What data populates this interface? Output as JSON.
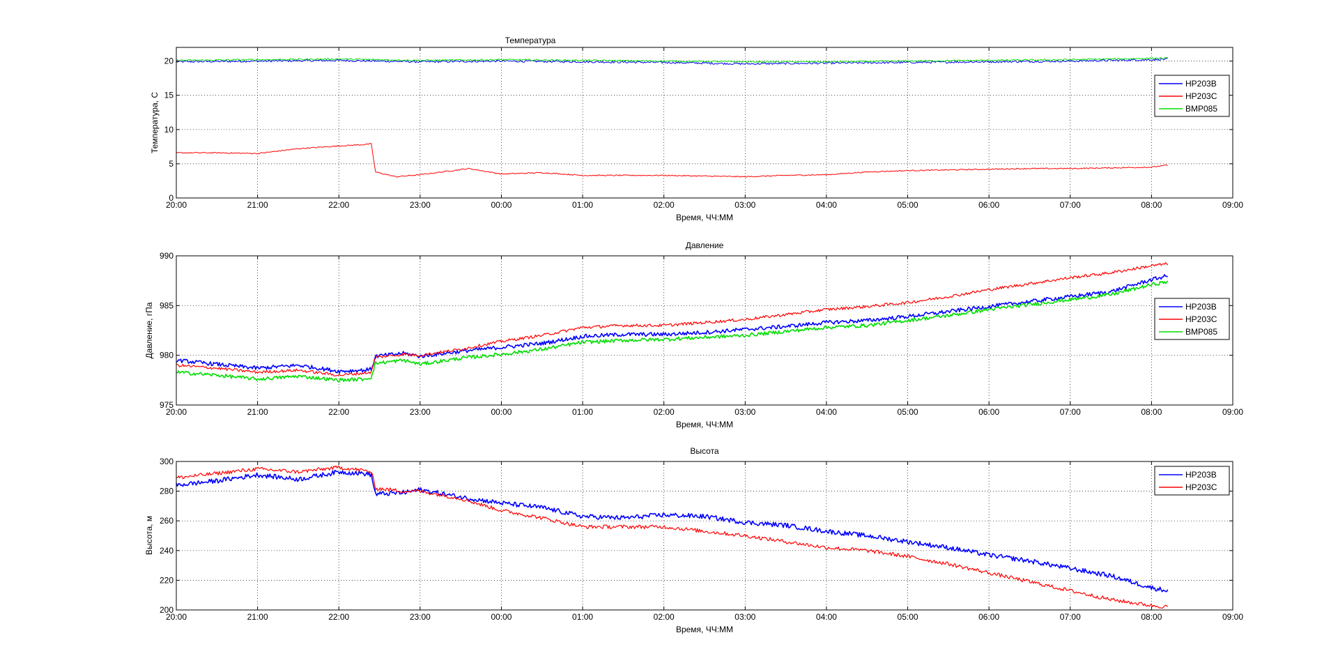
{
  "chart_data": [
    {
      "type": "line",
      "title": "Температура",
      "xlabel": "Время, ЧЧ:ММ",
      "ylabel": "Температура, C",
      "xlim": [
        20,
        33
      ],
      "ylim": [
        0,
        22
      ],
      "x_ticks": [
        20,
        21,
        22,
        23,
        24,
        25,
        26,
        27,
        28,
        29,
        30,
        31,
        32,
        33
      ],
      "x_tick_labels": [
        "20:00",
        "21:00",
        "22:00",
        "23:00",
        "00:00",
        "01:00",
        "02:00",
        "03:00",
        "04:00",
        "05:00",
        "06:00",
        "07:00",
        "08:00",
        "09:00"
      ],
      "y_ticks": [
        0,
        5,
        10,
        15,
        20
      ],
      "y_tick_labels": [
        "0",
        "5",
        "10",
        "15",
        "20"
      ],
      "grid": true,
      "legend_position": "right",
      "series": [
        {
          "name": "HP203B",
          "color": "#0000ff",
          "noise": 0.15,
          "width": 1,
          "x": [
            20,
            21,
            22,
            23,
            24,
            25,
            26,
            27,
            28,
            29,
            30,
            31,
            32,
            32.2
          ],
          "y": [
            19.9,
            20.0,
            20.1,
            19.9,
            20.0,
            19.9,
            19.8,
            19.6,
            19.7,
            19.8,
            19.9,
            20.0,
            20.2,
            20.3
          ]
        },
        {
          "name": "HP203C",
          "color": "#ff0000",
          "noise": 0.08,
          "width": 1,
          "x": [
            20,
            20.5,
            21,
            21.5,
            22,
            22.3,
            22.4,
            22.45,
            22.7,
            23,
            23.6,
            24,
            24.5,
            25,
            25.5,
            26,
            26.5,
            27,
            27.5,
            28,
            28.5,
            29,
            29.5,
            30,
            30.5,
            31,
            31.5,
            32,
            32.2
          ],
          "y": [
            6.6,
            6.6,
            6.5,
            7.2,
            7.6,
            7.8,
            7.9,
            3.8,
            3.1,
            3.4,
            4.3,
            3.5,
            3.7,
            3.3,
            3.3,
            3.3,
            3.2,
            3.1,
            3.3,
            3.4,
            3.8,
            4.0,
            4.1,
            4.2,
            4.3,
            4.3,
            4.4,
            4.5,
            4.8
          ]
        },
        {
          "name": "BMP085",
          "color": "#00dd00",
          "noise": 0.12,
          "width": 1,
          "x": [
            20,
            21,
            22,
            23,
            24,
            25,
            26,
            27,
            28,
            29,
            30,
            31,
            32,
            32.2
          ],
          "y": [
            20.1,
            20.2,
            20.3,
            20.1,
            20.2,
            20.1,
            20.0,
            19.9,
            19.9,
            20.0,
            20.1,
            20.2,
            20.4,
            20.4
          ]
        }
      ]
    },
    {
      "type": "line",
      "title": "Давление",
      "xlabel": "Время, ЧЧ:ММ",
      "ylabel": "Давление, гПа",
      "xlim": [
        20,
        33
      ],
      "ylim": [
        975,
        990
      ],
      "x_ticks": [
        20,
        21,
        22,
        23,
        24,
        25,
        26,
        27,
        28,
        29,
        30,
        31,
        32,
        33
      ],
      "x_tick_labels": [
        "20:00",
        "21:00",
        "22:00",
        "23:00",
        "00:00",
        "01:00",
        "02:00",
        "03:00",
        "04:00",
        "05:00",
        "06:00",
        "07:00",
        "08:00",
        "09:00"
      ],
      "y_ticks": [
        975,
        980,
        985,
        990
      ],
      "y_tick_labels": [
        "975",
        "980",
        "985",
        "990"
      ],
      "grid": true,
      "legend_position": "right",
      "series": [
        {
          "name": "HP203B",
          "color": "#0000ff",
          "noise": 0.2,
          "width": 1.6,
          "x": [
            20,
            20.5,
            21,
            21.5,
            22,
            22.3,
            22.4,
            22.45,
            22.8,
            23,
            23.5,
            24,
            24.5,
            25,
            25.5,
            26,
            26.5,
            27,
            27.5,
            28,
            28.5,
            29,
            29.5,
            30,
            30.5,
            31,
            31.5,
            32,
            32.2
          ],
          "y": [
            979.5,
            979.1,
            978.7,
            979.0,
            978.4,
            978.5,
            978.6,
            979.9,
            980.2,
            979.9,
            980.4,
            980.8,
            981.2,
            981.9,
            982.1,
            982.1,
            982.3,
            982.6,
            982.9,
            983.3,
            983.5,
            983.9,
            984.4,
            984.9,
            985.4,
            985.9,
            986.4,
            987.6,
            988.0
          ]
        },
        {
          "name": "HP203C",
          "color": "#ff0000",
          "noise": 0.15,
          "width": 1.2,
          "x": [
            20,
            20.5,
            21,
            21.5,
            22,
            22.3,
            22.4,
            22.45,
            22.8,
            23,
            23.5,
            24,
            24.5,
            25,
            25.5,
            26,
            26.5,
            27,
            27.5,
            28,
            28.5,
            29,
            29.5,
            30,
            30.5,
            31,
            31.5,
            32,
            32.2
          ],
          "y": [
            979.0,
            978.7,
            978.3,
            978.5,
            978.0,
            978.2,
            978.3,
            979.8,
            980.1,
            980.0,
            980.6,
            981.4,
            982.0,
            982.8,
            983.0,
            983.0,
            983.3,
            983.6,
            984.1,
            984.6,
            984.9,
            985.3,
            985.9,
            986.6,
            987.2,
            987.8,
            988.3,
            989.0,
            989.2
          ]
        },
        {
          "name": "BMP085",
          "color": "#00dd00",
          "noise": 0.18,
          "width": 1.6,
          "x": [
            20,
            20.5,
            21,
            21.5,
            22,
            22.3,
            22.4,
            22.45,
            22.8,
            23,
            23.5,
            24,
            24.5,
            25,
            25.5,
            26,
            26.5,
            27,
            27.5,
            28,
            28.5,
            29,
            29.5,
            30,
            30.5,
            31,
            31.5,
            32,
            32.2
          ],
          "y": [
            978.3,
            978.0,
            977.6,
            977.9,
            977.5,
            977.6,
            977.8,
            979.2,
            979.5,
            979.1,
            979.7,
            980.1,
            980.6,
            981.3,
            981.5,
            981.6,
            981.8,
            982.0,
            982.4,
            982.8,
            983.0,
            983.5,
            984.0,
            984.6,
            985.1,
            985.6,
            986.1,
            987.1,
            987.4
          ]
        }
      ]
    },
    {
      "type": "line",
      "title": "Высота",
      "xlabel": "Время, ЧЧ:ММ",
      "ylabel": "Высота, м",
      "xlim": [
        20,
        33
      ],
      "ylim": [
        200,
        300
      ],
      "x_ticks": [
        20,
        21,
        22,
        23,
        24,
        25,
        26,
        27,
        28,
        29,
        30,
        31,
        32,
        33
      ],
      "x_tick_labels": [
        "20:00",
        "21:00",
        "22:00",
        "23:00",
        "00:00",
        "01:00",
        "02:00",
        "03:00",
        "04:00",
        "05:00",
        "06:00",
        "07:00",
        "08:00",
        "09:00"
      ],
      "y_ticks": [
        200,
        220,
        240,
        260,
        280,
        300
      ],
      "y_tick_labels": [
        "200",
        "220",
        "240",
        "260",
        "280",
        "300"
      ],
      "grid": true,
      "legend_position": "top-right",
      "series": [
        {
          "name": "HP203B",
          "color": "#0000ff",
          "noise": 1.6,
          "width": 1.6,
          "x": [
            20,
            20.5,
            21,
            21.5,
            22,
            22.3,
            22.4,
            22.45,
            22.8,
            23,
            23.5,
            24,
            24.5,
            25,
            25.5,
            26,
            26.5,
            27,
            27.5,
            28,
            28.5,
            29,
            29.5,
            30,
            30.5,
            31,
            31.5,
            32,
            32.2
          ],
          "y": [
            284,
            287,
            291,
            288,
            293,
            292,
            291,
            278,
            279,
            281,
            276,
            272,
            269,
            263,
            262,
            264,
            263,
            259,
            257,
            253,
            250,
            246,
            242,
            237,
            233,
            228,
            223,
            215,
            213
          ]
        },
        {
          "name": "HP203C",
          "color": "#ff0000",
          "noise": 1.3,
          "width": 1.2,
          "x": [
            20,
            20.5,
            21,
            21.5,
            22,
            22.3,
            22.4,
            22.45,
            22.8,
            23,
            23.5,
            24,
            24.5,
            25,
            25.5,
            26,
            26.5,
            27,
            27.5,
            28,
            28.5,
            29,
            29.5,
            30,
            30.5,
            31,
            31.5,
            32,
            32.2
          ],
          "y": [
            289,
            292,
            295,
            293,
            296,
            294,
            293,
            282,
            280,
            280,
            275,
            267,
            262,
            256,
            256,
            256,
            253,
            250,
            246,
            242,
            240,
            236,
            231,
            225,
            219,
            213,
            207,
            203,
            202
          ]
        }
      ]
    }
  ]
}
